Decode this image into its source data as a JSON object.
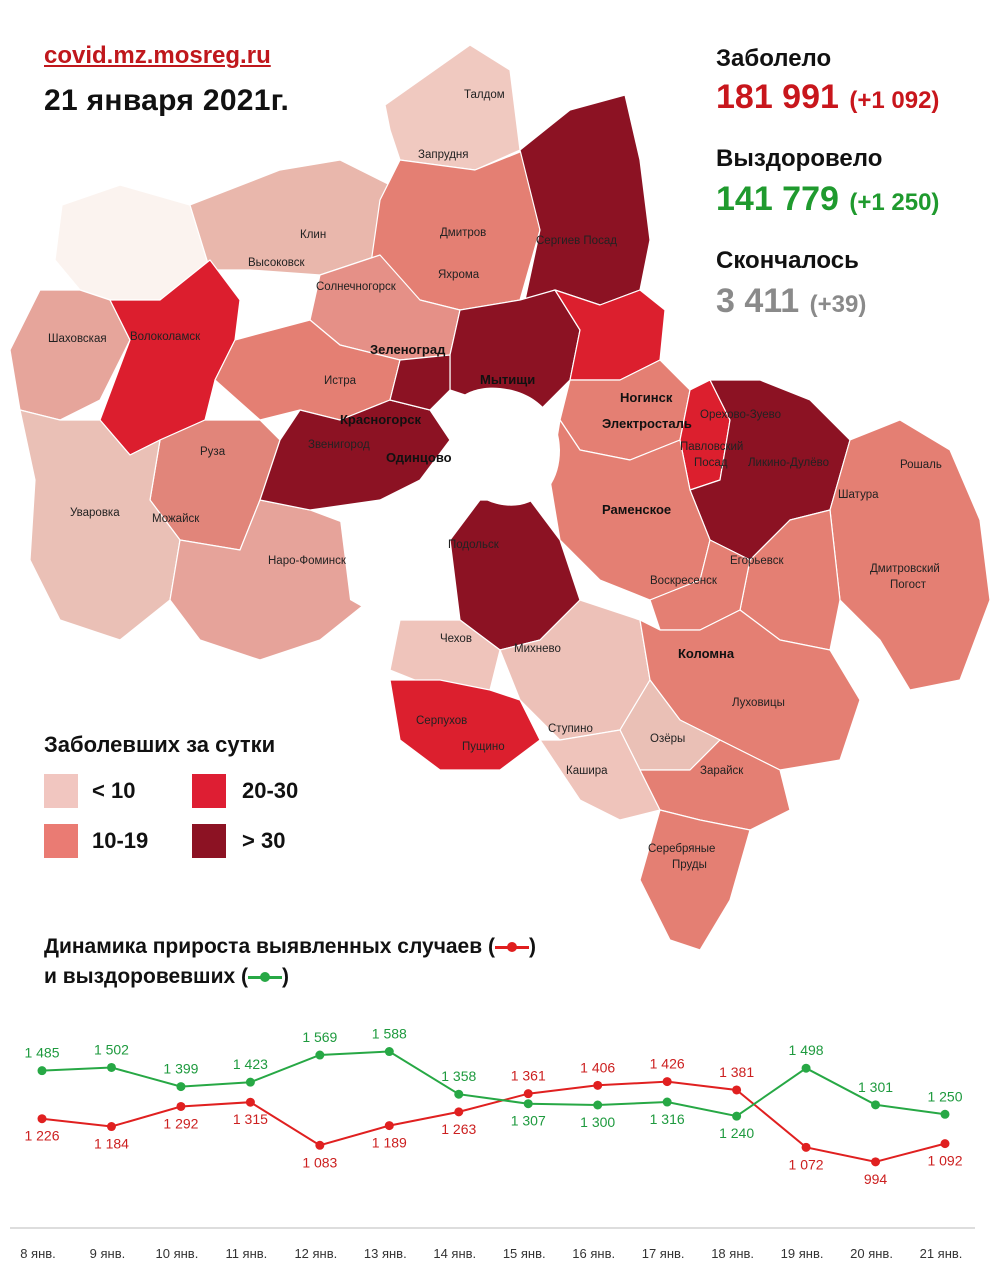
{
  "header": {
    "source": "covid.mz.mosreg.ru",
    "date": "21 января 2021г."
  },
  "stats": {
    "infected_label": "Заболело",
    "infected_value": "181 991",
    "infected_delta": "(+1 092)",
    "recovered_label": "Выздоровело",
    "recovered_value": "141 779",
    "recovered_delta": "(+1 250)",
    "died_label": "Скончалось",
    "died_value": "3 411",
    "died_delta": "(+39)",
    "colors": {
      "infected": "#c8161c",
      "recovered": "#1f9a2e",
      "died": "#8a8a8a"
    }
  },
  "map": {
    "towns": [
      "Талдом",
      "Запрудня",
      "Дмитров",
      "Яхрома",
      "Сергиев Посад",
      "Клин",
      "Высоковск",
      "Солнечногорск",
      "Шаховская",
      "Волоколамск",
      "Зеленоград",
      "Истра",
      "Мытищи",
      "Красногорск",
      "Звенигород",
      "Одинцово",
      "Ногинск",
      "Электросталь",
      "Павловский Посад",
      "Орехово-Зуево",
      "Ликино-Дулёво",
      "Рошаль",
      "Шатура",
      "Руза",
      "Уваровка",
      "Можайск",
      "Наро-Фоминск",
      "Раменское",
      "Подольск",
      "Воскресенск",
      "Егорьевск",
      "Дмитровский Погост",
      "Чехов",
      "Михнево",
      "Коломна",
      "Луховицы",
      "Серпухов",
      "Пущино",
      "Ступино",
      "Озёры",
      "Кашира",
      "Зарайск",
      "Серебряные Пруды"
    ],
    "category_colors": {
      "lt10": "#f0c9c2",
      "10_19": "#e87e72",
      "20_30": "#dc1f2e",
      "gt30": "#8e1020"
    }
  },
  "legend": {
    "title": "Заболевших за сутки",
    "items": [
      {
        "label": "< 10",
        "color": "#f1c6c0"
      },
      {
        "label": "20-30",
        "color": "#de1e33"
      },
      {
        "label": "10-19",
        "color": "#ea7b73"
      },
      {
        "label": "> 30",
        "color": "#8c1223"
      }
    ]
  },
  "chart_title": {
    "line1": "Динамика прироста выявленных случаев (",
    "line1_end": ")",
    "line2": "и выздоровевших (",
    "line2_end": ")"
  },
  "chart_data": {
    "type": "line",
    "categories": [
      "8 янв.",
      "9 янв.",
      "10 янв.",
      "11 янв.",
      "12 янв.",
      "13 янв.",
      "14 янв.",
      "15 янв.",
      "16 янв.",
      "17 янв.",
      "18 янв.",
      "19 янв.",
      "20 янв.",
      "21 янв."
    ],
    "series": [
      {
        "key": "cases",
        "color": "#e02020",
        "values": [
          1226,
          1184,
          1292,
          1315,
          1083,
          1189,
          1263,
          1361,
          1406,
          1426,
          1381,
          1072,
          994,
          1092
        ],
        "labels": [
          "1 226",
          "1 184",
          "1 292",
          "1 315",
          "1 083",
          "1 189",
          "1 263",
          "1 361",
          "1 406",
          "1 426",
          "1 381",
          "1 072",
          "994",
          "1 092"
        ]
      },
      {
        "key": "recovered",
        "color": "#27a845",
        "values": [
          1485,
          1502,
          1399,
          1423,
          1569,
          1588,
          1358,
          1307,
          1300,
          1316,
          1240,
          1498,
          1301,
          1250
        ],
        "labels": [
          "1 485",
          "1 502",
          "1 399",
          "1 423",
          "1 569",
          "1 588",
          "1 358",
          "1 307",
          "1 300",
          "1 316",
          "1 240",
          "1 498",
          "1 301",
          "1 250"
        ]
      }
    ],
    "grid": false
  }
}
